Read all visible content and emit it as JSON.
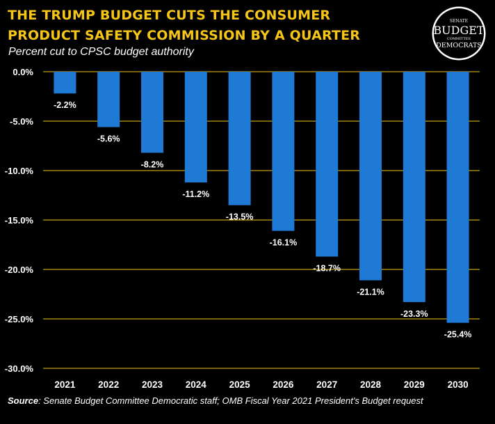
{
  "header": {
    "title_line1": "THE TRUMP BUDGET CUTS THE CONSUMER",
    "title_line2": "PRODUCT SAFETY COMMISSION BY A QUARTER",
    "subtitle": "Percent cut to CPSC budget authority"
  },
  "logo": {
    "line1": "SENATE",
    "line2": "BUDGET",
    "line3": "COMMITTEE",
    "line4": "DEMOCRATS"
  },
  "footer": {
    "source_label": "Source",
    "source_text": ": Senate Budget Committee Democratic staff; OMB Fiscal Year 2021 President's Budget request"
  },
  "colors": {
    "background": "#000000",
    "bar": "#1f7ad6",
    "title": "#f5c518",
    "gridline": "#f5c518",
    "text": "#ffffff"
  },
  "chart_data": {
    "type": "bar",
    "title": "THE TRUMP BUDGET CUTS THE CONSUMER PRODUCT SAFETY COMMISSION BY A QUARTER",
    "subtitle": "Percent cut to CPSC budget authority",
    "categories": [
      "2021",
      "2022",
      "2023",
      "2024",
      "2025",
      "2026",
      "2027",
      "2028",
      "2029",
      "2030"
    ],
    "values": [
      -2.2,
      -5.6,
      -8.2,
      -11.2,
      -13.5,
      -16.1,
      -18.7,
      -21.1,
      -23.3,
      -25.4
    ],
    "data_labels": [
      "-2.2%",
      "-5.6%",
      "-8.2%",
      "-11.2%",
      "-13.5%",
      "-16.1%",
      "-18.7%",
      "-21.1%",
      "-23.3%",
      "-25.4%"
    ],
    "y_ticks": [
      0,
      -5,
      -10,
      -15,
      -20,
      -25,
      -30
    ],
    "y_tick_labels": [
      "0.0%",
      "-5.0%",
      "-10.0%",
      "-15.0%",
      "-20.0%",
      "-25.0%",
      "-30.0%"
    ],
    "ylim": [
      -30,
      0
    ],
    "xlabel": "",
    "ylabel": "",
    "grid": true,
    "legend": "none"
  }
}
